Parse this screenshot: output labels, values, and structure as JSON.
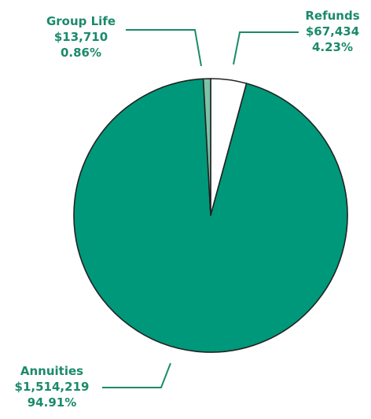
{
  "label_color": "#1b8a6b",
  "chart_data": {
    "type": "pie",
    "start": "12 o'clock",
    "direction": "clockwise",
    "slices": [
      {
        "name": "Refunds",
        "value": 67434,
        "value_label": "$67,434",
        "percent_label": "4.23%",
        "color": "#ffffff"
      },
      {
        "name": "Annuities",
        "value": 1514219,
        "value_label": "$1,514,219",
        "percent_label": "94.91%",
        "color": "#00987a"
      },
      {
        "name": "Group Life",
        "value": 13710,
        "value_label": "$13,710",
        "percent_label": "0.86%",
        "color": "#7cc3a8"
      }
    ]
  }
}
